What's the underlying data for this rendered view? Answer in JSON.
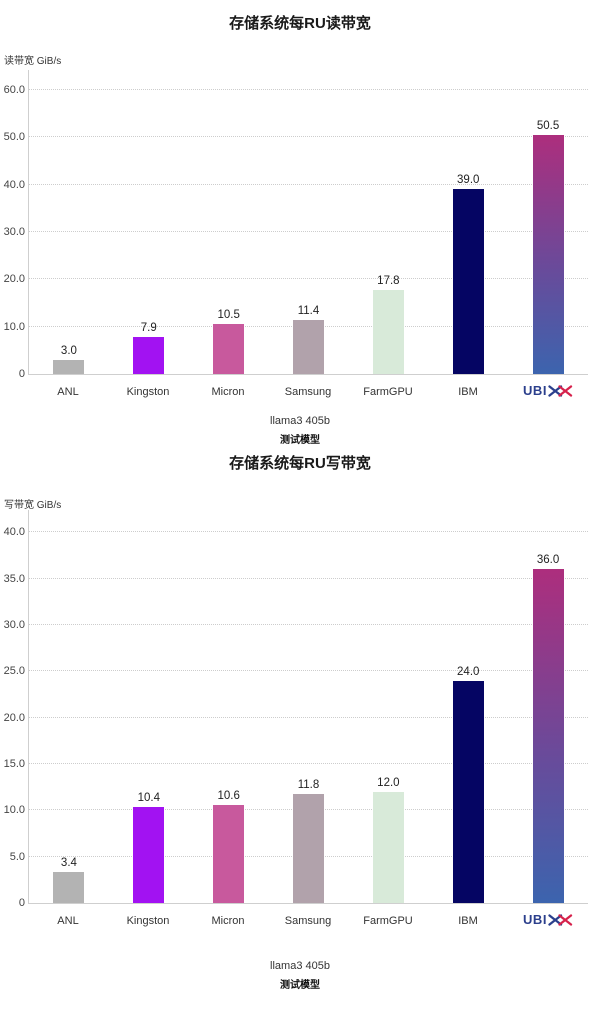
{
  "chart_data": [
    {
      "type": "bar",
      "title": "存储系统每RU读带宽",
      "ylabel": "读带宽 GiB/s",
      "xlabel_line1": "llama3 405b",
      "xlabel_line2": "测试模型",
      "categories": [
        "ANL",
        "Kingston",
        "Micron",
        "Samsung",
        "FarmGPU",
        "IBM",
        "UBIX"
      ],
      "values": [
        3.0,
        7.9,
        10.5,
        11.4,
        17.8,
        39.0,
        50.5
      ],
      "value_labels": [
        "3.0",
        "7.9",
        "10.5",
        "11.4",
        "17.8",
        "39.0",
        "50.5"
      ],
      "ticks": [
        0,
        10,
        20,
        30,
        40,
        50,
        60
      ],
      "tick_labels": [
        "0",
        "10.0",
        "20.0",
        "30.0",
        "40.0",
        "50.0",
        "60.0"
      ],
      "ylim": [
        0,
        64.2
      ],
      "grid": "dotted-horizontal",
      "legend": "none",
      "bar_colors": [
        "#b3b3b3",
        "#a212f2",
        "#c8599d",
        "#b1a2ab",
        "#d8ead9",
        "#050563",
        "gradient"
      ],
      "gradient": {
        "top": "#ad2e7d",
        "mid": "#6a4a9a",
        "bottom": "#3c64ae"
      }
    },
    {
      "type": "bar",
      "title": "存储系统每RU写带宽",
      "ylabel": "写带宽 GiB/s",
      "xlabel_line1": "llama3 405b",
      "xlabel_line2": "测试模型",
      "categories": [
        "ANL",
        "Kingston",
        "Micron",
        "Samsung",
        "FarmGPU",
        "IBM",
        "UBIX"
      ],
      "values": [
        3.4,
        10.4,
        10.6,
        11.8,
        12.0,
        24.0,
        36.0
      ],
      "value_labels": [
        "3.4",
        "10.4",
        "10.6",
        "11.8",
        "12.0",
        "24.0",
        "36.0"
      ],
      "ticks": [
        0,
        5,
        10,
        15,
        20,
        25,
        30,
        35,
        40
      ],
      "tick_labels": [
        "0",
        "5.0",
        "10.0",
        "15.0",
        "20.0",
        "25.0",
        "30.0",
        "35.0",
        "40.0"
      ],
      "ylim": [
        0,
        42.4
      ],
      "grid": "dotted-horizontal",
      "legend": "none",
      "bar_colors": [
        "#b3b3b3",
        "#a212f2",
        "#c8599d",
        "#b1a2ab",
        "#d8ead9",
        "#050563",
        "gradient"
      ],
      "gradient": {
        "top": "#ad2e7d",
        "mid": "#6a4a9a",
        "bottom": "#3c64ae"
      }
    }
  ],
  "ubix_logo": {
    "text": "UBI",
    "blue": "#2b3f8c",
    "red": "#d6224c"
  }
}
